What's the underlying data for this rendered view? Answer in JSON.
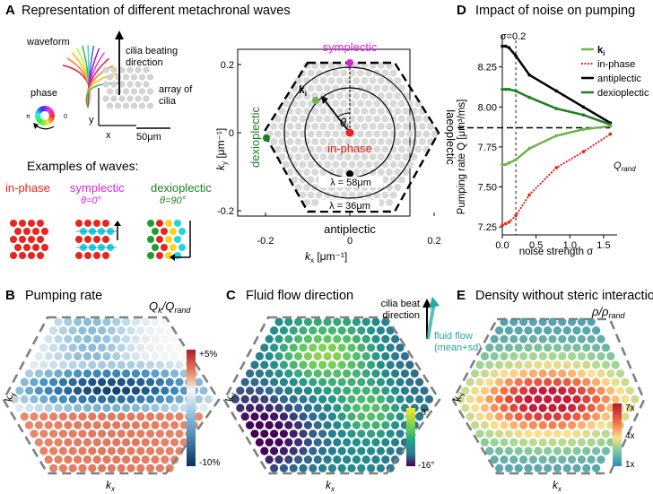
{
  "panelA": {
    "letter": "A",
    "title": "Representation of different metachronal waves",
    "waveform_label": "waveform",
    "beating_label_line1": "cilia beating",
    "beating_label_line2": "direction",
    "array_label_line1": "array of",
    "array_label_line2": "cilia",
    "phase_label": "phase",
    "phase_pi": "π",
    "phase_zero": "0",
    "axis_y": "y",
    "axis_x": "x",
    "scale_bar": "50μm",
    "examples_title": "Examples of waves:",
    "ex_inphase": "in-phase",
    "ex_symplectic": "symplectic",
    "ex_symplectic_theta": "θ=0°",
    "ex_dexioplectic": "dexioplectic",
    "ex_dexioplectic_theta": "θ=90°",
    "map": {
      "label_top": "symplectic",
      "label_bottom": "antiplectic",
      "label_left": "dexioplectic",
      "label_right": "laeoplectic",
      "label_center": "in-phase",
      "label_ki": "k",
      "label_ki_sub": "i",
      "label_theta": "θ",
      "label_theta_sub": "i",
      "lambda1": "λ = 58μm",
      "lambda2": "λ = 36μm",
      "yaxis_label": "k",
      "yaxis_sub": "y",
      "yaxis_unit": " [μm⁻¹]",
      "xaxis_label": "k",
      "xaxis_sub": "x",
      "xaxis_unit": " [μm⁻¹]",
      "yticks": [
        "0.2",
        "0",
        "-0.2"
      ],
      "xticks": [
        "-0.2",
        "0",
        "0.2"
      ]
    }
  },
  "panelD": {
    "letter": "D",
    "title": "Impact of noise on pumping",
    "sigma_marker": "σ=0.2",
    "ylabel": "Pumping rate Q [μm³/ms]",
    "xlabel": "noise strength σ",
    "qrand_label": "Q",
    "qrand_sub": "rand",
    "legend_k": "k",
    "legend_k_sub": "i",
    "legend_inphase": "in-phase",
    "legend_antiplectic": "antiplectic",
    "legend_dexioplectic": "dexioplectic",
    "colors": {
      "ki": "#6fb34a",
      "inphase": "#e8241c",
      "antiplectic": "#000000",
      "dexioplectic": "#1e7f24"
    }
  },
  "panelB": {
    "letter": "B",
    "title": "Pumping rate",
    "ratio_num": "Q",
    "ratio_num_sub": "k",
    "ratio_den": "Q",
    "ratio_den_sub": "rand",
    "cbar_top": "+5%",
    "cbar_bottom": "-10%",
    "kx": "k",
    "kx_sub": "x",
    "ky": "k",
    "ky_sub": "y"
  },
  "panelC": {
    "letter": "C",
    "title": "Fluid flow direction",
    "beat_line1": "cilia beat",
    "beat_line2": "direction",
    "flow_line1": "fluid flow",
    "flow_line2": "(mean+sd)",
    "cbar_top": "-8°",
    "cbar_bottom": "-16°",
    "kx": "k",
    "kx_sub": "x",
    "ky": "k",
    "ky_sub": "y"
  },
  "panelE": {
    "letter": "E",
    "title": "Density without steric interaction",
    "ratio": "ρ/ρ",
    "ratio_sub": "rand",
    "cbar_top": "7x",
    "cbar_mid": "4x",
    "cbar_bottom": "1x",
    "kx": "k",
    "kx_sub": "x",
    "ky": "k",
    "ky_sub": "y"
  },
  "chart_data": {
    "type": "line",
    "title": "Impact of noise on pumping",
    "xlabel": "noise strength σ",
    "ylabel": "Pumping rate Q [μm³/ms]",
    "xlim": [
      0,
      1.7
    ],
    "ylim": [
      7.2,
      8.45
    ],
    "xticks": [
      0.0,
      0.5,
      1.0,
      1.5
    ],
    "yticks": [
      7.25,
      7.5,
      7.75,
      8.0,
      8.25
    ],
    "x": [
      0.0,
      0.05,
      0.1,
      0.2,
      0.4,
      0.8,
      1.2,
      1.6
    ],
    "series": [
      {
        "name": "antiplectic",
        "values": [
          8.38,
          8.38,
          8.37,
          8.32,
          8.2,
          8.1,
          8.0,
          7.9
        ]
      },
      {
        "name": "dexioplectic",
        "values": [
          8.11,
          8.11,
          8.11,
          8.1,
          8.06,
          7.99,
          7.95,
          7.89
        ]
      },
      {
        "name": "ki",
        "values": [
          7.64,
          7.64,
          7.65,
          7.67,
          7.74,
          7.82,
          7.86,
          7.88
        ]
      },
      {
        "name": "in-phase",
        "values": [
          7.26,
          7.27,
          7.28,
          7.32,
          7.45,
          7.62,
          7.72,
          7.83
        ]
      }
    ],
    "reference_lines": [
      {
        "name": "Q_rand",
        "orientation": "horizontal",
        "value": 7.87
      },
      {
        "name": "σ=0.2",
        "orientation": "vertical",
        "value": 0.2
      }
    ],
    "grid": false,
    "legend": "top-right"
  }
}
